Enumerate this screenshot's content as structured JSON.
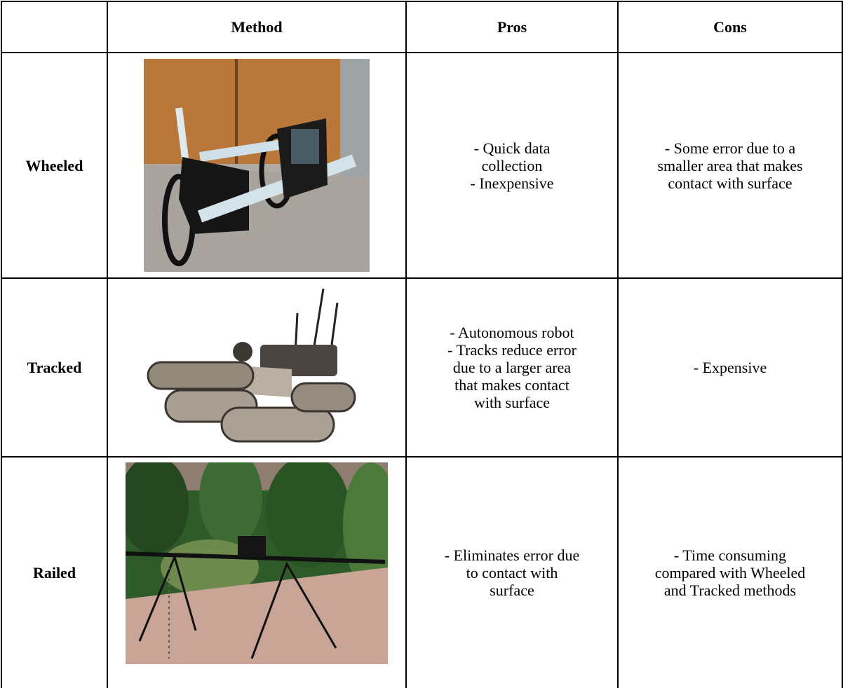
{
  "table": {
    "header": {
      "method": "Method",
      "pros": "Pros",
      "cons": "Cons"
    },
    "rows": [
      {
        "label": "Wheeled",
        "pros": [
          "- Quick data",
          "collection",
          "- Inexpensive"
        ],
        "cons": [
          "- Some error due to a",
          "smaller area that makes",
          "contact with surface"
        ]
      },
      {
        "label": "Tracked",
        "pros": [
          "- Autonomous robot",
          "- Tracks reduce error",
          "due to a larger area",
          "that makes contact",
          "with surface"
        ],
        "cons": [
          "- Expensive"
        ]
      },
      {
        "label": "Railed",
        "pros": [
          "- Eliminates error due",
          "to contact with",
          "surface"
        ],
        "cons": [
          "- Time consuming",
          "compared with Wheeled",
          "and Tracked methods"
        ]
      }
    ]
  }
}
